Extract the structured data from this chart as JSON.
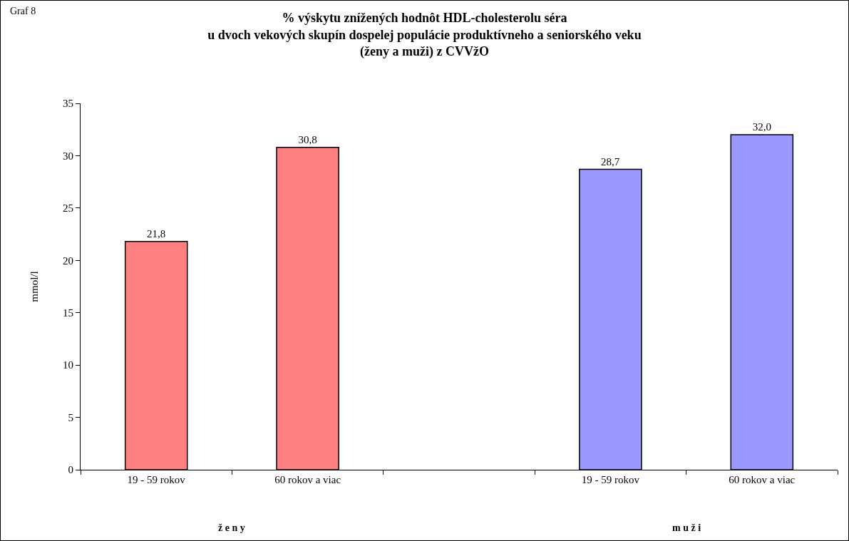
{
  "chart_data": {
    "type": "bar",
    "title": "% výskytu znížených hodnôt HDL-cholesterolu séra\nu dvoch vekových skupín dospelej populácie produktívneho a seniorského veku\n(ženy a muži) z CVVžO",
    "ylabel": "mmol/l",
    "categories": [
      "19 - 59 rokov",
      "60 rokov a viac",
      null,
      "19 - 59 rokov",
      "60 rokov a viac"
    ],
    "values": [
      21.8,
      30.8,
      null,
      28.7,
      32.0
    ],
    "value_labels": [
      "21,8",
      "30,8",
      null,
      "28,7",
      "32,0"
    ],
    "colors": [
      "#ff8080",
      "#ff8080",
      null,
      "#9999ff",
      "#9999ff"
    ],
    "ylim": [
      0,
      35
    ],
    "yticks": [
      0,
      5,
      10,
      15,
      20,
      25,
      30,
      35
    ],
    "grid": false,
    "legend": false,
    "annotations": [
      "Graf 8",
      "ž e n y",
      "m u ž i"
    ]
  }
}
